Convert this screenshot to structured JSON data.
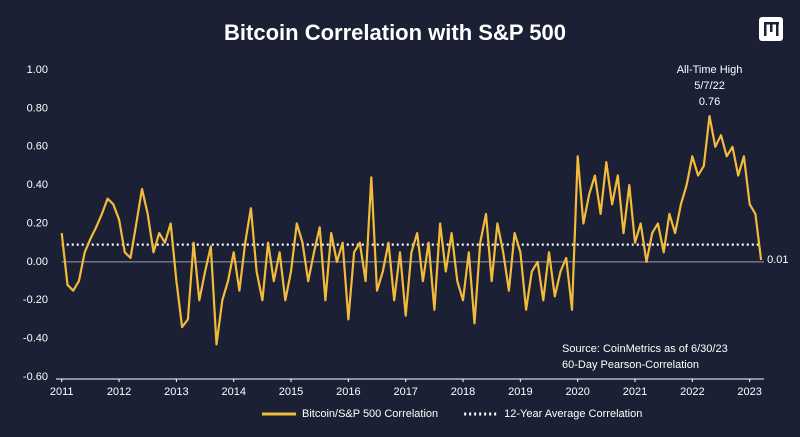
{
  "chart_data": {
    "type": "line",
    "title": "Bitcoin Correlation with S&P 500",
    "x": [
      2011.0,
      2011.1,
      2011.2,
      2011.3,
      2011.4,
      2011.5,
      2011.6,
      2011.7,
      2011.8,
      2011.9,
      2012.0,
      2012.1,
      2012.2,
      2012.3,
      2012.4,
      2012.5,
      2012.6,
      2012.7,
      2012.8,
      2012.9,
      2013.0,
      2013.1,
      2013.2,
      2013.3,
      2013.4,
      2013.5,
      2013.6,
      2013.7,
      2013.8,
      2013.9,
      2014.0,
      2014.1,
      2014.2,
      2014.3,
      2014.4,
      2014.5,
      2014.6,
      2014.7,
      2014.8,
      2014.9,
      2015.0,
      2015.1,
      2015.2,
      2015.3,
      2015.4,
      2015.5,
      2015.6,
      2015.7,
      2015.8,
      2015.9,
      2016.0,
      2016.1,
      2016.2,
      2016.3,
      2016.4,
      2016.5,
      2016.6,
      2016.7,
      2016.8,
      2016.9,
      2017.0,
      2017.1,
      2017.2,
      2017.3,
      2017.4,
      2017.5,
      2017.6,
      2017.7,
      2017.8,
      2017.9,
      2018.0,
      2018.1,
      2018.2,
      2018.3,
      2018.4,
      2018.5,
      2018.6,
      2018.7,
      2018.8,
      2018.9,
      2019.0,
      2019.1,
      2019.2,
      2019.3,
      2019.4,
      2019.5,
      2019.6,
      2019.7,
      2019.8,
      2019.9,
      2020.0,
      2020.1,
      2020.2,
      2020.3,
      2020.4,
      2020.5,
      2020.6,
      2020.7,
      2020.8,
      2020.9,
      2021.0,
      2021.1,
      2021.2,
      2021.3,
      2021.4,
      2021.5,
      2021.6,
      2021.7,
      2021.8,
      2021.9,
      2022.0,
      2022.1,
      2022.2,
      2022.3,
      2022.4,
      2022.5,
      2022.6,
      2022.7,
      2022.8,
      2022.9,
      2023.0,
      2023.1,
      2023.2
    ],
    "series": [
      {
        "name": "Bitcoin/S&P 500 Correlation",
        "color": "#f2bb3a",
        "values": [
          0.15,
          -0.12,
          -0.15,
          -0.1,
          0.05,
          0.12,
          0.18,
          0.25,
          0.33,
          0.3,
          0.22,
          0.05,
          0.02,
          0.2,
          0.38,
          0.25,
          0.05,
          0.15,
          0.1,
          0.2,
          -0.1,
          -0.34,
          -0.3,
          0.1,
          -0.2,
          -0.05,
          0.08,
          -0.43,
          -0.2,
          -0.1,
          0.05,
          -0.15,
          0.1,
          0.28,
          -0.05,
          -0.2,
          0.1,
          -0.1,
          0.05,
          -0.2,
          -0.05,
          0.2,
          0.1,
          -0.1,
          0.05,
          0.18,
          -0.2,
          0.15,
          0.0,
          0.1,
          -0.3,
          0.05,
          0.1,
          -0.1,
          0.44,
          -0.15,
          -0.05,
          0.1,
          -0.2,
          0.05,
          -0.28,
          0.05,
          0.15,
          -0.1,
          0.1,
          -0.25,
          0.2,
          -0.05,
          0.15,
          -0.1,
          -0.2,
          0.05,
          -0.32,
          0.1,
          0.25,
          -0.1,
          0.2,
          0.05,
          -0.15,
          0.15,
          0.05,
          -0.25,
          -0.05,
          0.0,
          -0.2,
          0.05,
          -0.18,
          -0.05,
          0.02,
          -0.25,
          0.55,
          0.2,
          0.35,
          0.45,
          0.25,
          0.52,
          0.3,
          0.45,
          0.15,
          0.4,
          0.1,
          0.2,
          0.0,
          0.15,
          0.2,
          0.05,
          0.25,
          0.15,
          0.3,
          0.4,
          0.55,
          0.45,
          0.5,
          0.76,
          0.6,
          0.66,
          0.55,
          0.6,
          0.45,
          0.55,
          0.3,
          0.25,
          0.01
        ]
      }
    ],
    "reference_lines": [
      {
        "name": "12-Year Average Correlation",
        "value": 0.09,
        "color": "#ffffff",
        "style": "dotted"
      }
    ],
    "xlim": [
      2010.9,
      2023.25
    ],
    "xticks": [
      2011,
      2012,
      2013,
      2014,
      2015,
      2016,
      2017,
      2018,
      2019,
      2020,
      2021,
      2022,
      2023
    ],
    "ylim": [
      -0.6,
      1.0
    ],
    "yticks": [
      {
        "value": -0.6,
        "label": "-0.60"
      },
      {
        "value": -0.4,
        "label": "-0.40"
      },
      {
        "value": -0.2,
        "label": "-0.20"
      },
      {
        "value": 0,
        "label": "0.00"
      },
      {
        "value": 0.2,
        "label": "0.20"
      },
      {
        "value": 0.4,
        "label": "0.40"
      },
      {
        "value": 0.6,
        "label": "0.60"
      },
      {
        "value": 0.8,
        "label": "0.80"
      },
      {
        "value": 1.0,
        "label": "1.00"
      }
    ],
    "peak_annotation": [
      "All-Time High",
      "5/7/22",
      "0.76"
    ],
    "end_label": "0.01",
    "source": [
      "Source: CoinMetrics as of 6/30/23",
      "60-Day Pearson-Correlation"
    ]
  }
}
